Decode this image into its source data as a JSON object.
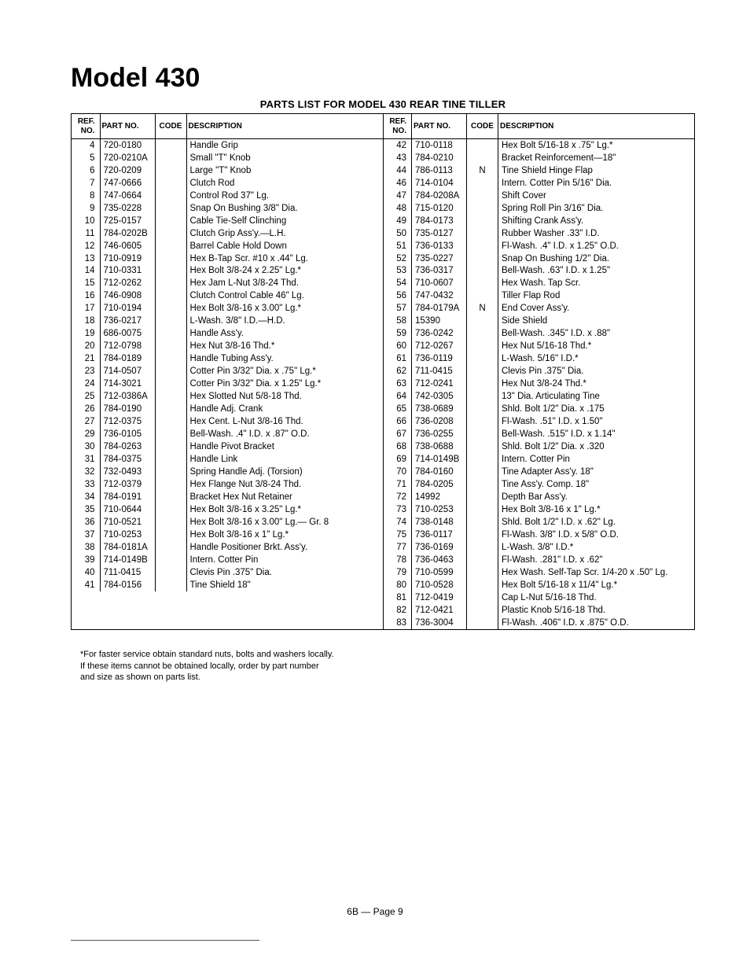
{
  "title": "Model 430",
  "subtitle": "PARTS LIST FOR MODEL 430 REAR TINE TILLER",
  "headers": {
    "ref": "REF.\nNO.",
    "part": "PART\nNO.",
    "code": "CODE",
    "desc": "DESCRIPTION"
  },
  "footnote": "*For faster service obtain standard nuts, bolts and washers locally.\nIf these items cannot be obtained locally, order by part number\nand size as shown on parts list.",
  "pagefoot": "6B — Page 9",
  "left": [
    {
      "r": "4",
      "p": "720-0180",
      "c": "",
      "d": "Handle Grip"
    },
    {
      "r": "5",
      "p": "720-0210A",
      "c": "",
      "d": "Small \"T\" Knob"
    },
    {
      "r": "6",
      "p": "720-0209",
      "c": "",
      "d": "Large \"T\" Knob"
    },
    {
      "r": "7",
      "p": "747-0666",
      "c": "",
      "d": "Clutch Rod"
    },
    {
      "r": "8",
      "p": "747-0664",
      "c": "",
      "d": "Control Rod 37\" Lg."
    },
    {
      "r": "9",
      "p": "735-0228",
      "c": "",
      "d": "Snap On Bushing 3/8\" Dia."
    },
    {
      "r": "10",
      "p": "725-0157",
      "c": "",
      "d": "Cable Tie-Self Clinching"
    },
    {
      "r": "11",
      "p": "784-0202B",
      "c": "",
      "d": "Clutch Grip Ass'y.—L.H."
    },
    {
      "r": "12",
      "p": "746-0605",
      "c": "",
      "d": "Barrel Cable Hold Down"
    },
    {
      "r": "13",
      "p": "710-0919",
      "c": "",
      "d": "Hex B-Tap Scr. #10 x .44\" Lg."
    },
    {
      "r": "14",
      "p": "710-0331",
      "c": "",
      "d": "Hex Bolt 3/8-24 x 2.25\" Lg.*"
    },
    {
      "r": "15",
      "p": "712-0262",
      "c": "",
      "d": "Hex Jam L-Nut 3/8-24 Thd."
    },
    {
      "r": "16",
      "p": "746-0908",
      "c": "",
      "d": "Clutch Control Cable 46\" Lg."
    },
    {
      "r": "17",
      "p": "710-0194",
      "c": "",
      "d": "Hex Bolt 3/8-16 x 3.00\" Lg.*"
    },
    {
      "r": "18",
      "p": "736-0217",
      "c": "",
      "d": "L-Wash. 3/8\" I.D.—H.D."
    },
    {
      "r": "19",
      "p": "686-0075",
      "c": "",
      "d": "Handle Ass'y."
    },
    {
      "r": "20",
      "p": "712-0798",
      "c": "",
      "d": "Hex Nut 3/8-16 Thd.*"
    },
    {
      "r": "21",
      "p": "784-0189",
      "c": "",
      "d": "Handle Tubing Ass'y."
    },
    {
      "r": "23",
      "p": "714-0507",
      "c": "",
      "d": "Cotter Pin 3/32\" Dia. x .75\" Lg.*"
    },
    {
      "r": "24",
      "p": "714-3021",
      "c": "",
      "d": "Cotter Pin 3/32\" Dia. x 1.25\" Lg.*"
    },
    {
      "r": "25",
      "p": "712-0386A",
      "c": "",
      "d": "Hex Slotted Nut 5/8-18 Thd."
    },
    {
      "r": "26",
      "p": "784-0190",
      "c": "",
      "d": "Handle Adj. Crank"
    },
    {
      "r": "27",
      "p": "712-0375",
      "c": "",
      "d": "Hex Cent. L-Nut 3/8-16 Thd."
    },
    {
      "r": "29",
      "p": "736-0105",
      "c": "",
      "d": "Bell-Wash. .4\" I.D. x .87\" O.D."
    },
    {
      "r": "30",
      "p": "784-0263",
      "c": "",
      "d": "Handle Pivot Bracket"
    },
    {
      "r": "31",
      "p": "784-0375",
      "c": "",
      "d": "Handle Link"
    },
    {
      "r": "32",
      "p": "732-0493",
      "c": "",
      "d": "Spring Handle Adj. (Torsion)"
    },
    {
      "r": "33",
      "p": "712-0379",
      "c": "",
      "d": "Hex Flange Nut 3/8-24 Thd."
    },
    {
      "r": "34",
      "p": "784-0191",
      "c": "",
      "d": "Bracket Hex Nut Retainer"
    },
    {
      "r": "35",
      "p": "710-0644",
      "c": "",
      "d": "Hex Bolt 3/8-16 x 3.25\" Lg.*"
    },
    {
      "r": "36",
      "p": "710-0521",
      "c": "",
      "d": "Hex Bolt 3/8-16 x 3.00\" Lg.— Gr. 8"
    },
    {
      "r": "37",
      "p": "710-0253",
      "c": "",
      "d": "Hex Bolt 3/8-16 x 1\" Lg.*"
    },
    {
      "r": "38",
      "p": "784-0181A",
      "c": "",
      "d": "Handle Positioner Brkt. Ass'y."
    },
    {
      "r": "39",
      "p": "714-0149B",
      "c": "",
      "d": "Intern. Cotter Pin"
    },
    {
      "r": "40",
      "p": "711-0415",
      "c": "",
      "d": "Clevis Pin .375\" Dia."
    },
    {
      "r": "41",
      "p": "784-0156",
      "c": "",
      "d": "Tine Shield 18\""
    }
  ],
  "right": [
    {
      "r": "42",
      "p": "710-0118",
      "c": "",
      "d": "Hex Bolt 5/16-18 x .75\" Lg.*"
    },
    {
      "r": "43",
      "p": "784-0210",
      "c": "",
      "d": "Bracket Reinforcement—18\""
    },
    {
      "r": "44",
      "p": "786-0113",
      "c": "N",
      "d": "Tine Shield Hinge Flap"
    },
    {
      "r": "46",
      "p": "714-0104",
      "c": "",
      "d": "Intern. Cotter Pin 5/16\" Dia."
    },
    {
      "r": "47",
      "p": "784-0208A",
      "c": "",
      "d": "Shift Cover"
    },
    {
      "r": "48",
      "p": "715-0120",
      "c": "",
      "d": "Spring Roll Pin 3/16\" Dia."
    },
    {
      "r": "49",
      "p": "784-0173",
      "c": "",
      "d": "Shifting Crank Ass'y."
    },
    {
      "r": "50",
      "p": "735-0127",
      "c": "",
      "d": "Rubber Washer .33\" I.D."
    },
    {
      "r": "51",
      "p": "736-0133",
      "c": "",
      "d": "Fl-Wash. .4\" I.D. x 1.25\" O.D."
    },
    {
      "r": "52",
      "p": "735-0227",
      "c": "",
      "d": "Snap On Bushing 1/2\" Dia."
    },
    {
      "r": "53",
      "p": "736-0317",
      "c": "",
      "d": "Bell-Wash. .63\" I.D. x 1.25\""
    },
    {
      "r": "54",
      "p": "710-0607",
      "c": "",
      "d": "Hex Wash. Tap Scr."
    },
    {
      "r": "56",
      "p": "747-0432",
      "c": "",
      "d": "Tiller Flap Rod"
    },
    {
      "r": "57",
      "p": "784-0179A",
      "c": "N",
      "d": "End Cover Ass'y."
    },
    {
      "r": "58",
      "p": "15390",
      "c": "",
      "d": "Side Shield"
    },
    {
      "r": "59",
      "p": "736-0242",
      "c": "",
      "d": "Bell-Wash. .345\" I.D. x .88\""
    },
    {
      "r": "60",
      "p": "712-0267",
      "c": "",
      "d": "Hex Nut 5/16-18 Thd.*"
    },
    {
      "r": "61",
      "p": "736-0119",
      "c": "",
      "d": "L-Wash. 5/16\" I.D.*"
    },
    {
      "r": "62",
      "p": "711-0415",
      "c": "",
      "d": "Clevis Pin .375\" Dia."
    },
    {
      "r": "63",
      "p": "712-0241",
      "c": "",
      "d": "Hex Nut 3/8-24 Thd.*"
    },
    {
      "r": "64",
      "p": "742-0305",
      "c": "",
      "d": "13\" Dia. Articulating Tine"
    },
    {
      "r": "65",
      "p": "738-0689",
      "c": "",
      "d": "Shld. Bolt 1/2\" Dia. x .175"
    },
    {
      "r": "66",
      "p": "736-0208",
      "c": "",
      "d": "Fl-Wash. .51\" I.D. x 1.50\""
    },
    {
      "r": "67",
      "p": "736-0255",
      "c": "",
      "d": "Bell-Wash. .515\" I.D. x 1.14\""
    },
    {
      "r": "68",
      "p": "738-0688",
      "c": "",
      "d": "Shld. Bolt 1/2\" Dia. x .320"
    },
    {
      "r": "69",
      "p": "714-0149B",
      "c": "",
      "d": "Intern. Cotter Pin"
    },
    {
      "r": "70",
      "p": "784-0160",
      "c": "",
      "d": "Tine Adapter Ass'y. 18\""
    },
    {
      "r": "71",
      "p": "784-0205",
      "c": "",
      "d": "Tine Ass'y. Comp. 18\""
    },
    {
      "r": "72",
      "p": "14992",
      "c": "",
      "d": "Depth Bar Ass'y."
    },
    {
      "r": "73",
      "p": "710-0253",
      "c": "",
      "d": "Hex Bolt 3/8-16 x 1\" Lg.*"
    },
    {
      "r": "74",
      "p": "738-0148",
      "c": "",
      "d": "Shld. Bolt 1/2\" I.D. x .62\" Lg."
    },
    {
      "r": "75",
      "p": "736-0117",
      "c": "",
      "d": "Fl-Wash. 3/8\" I.D. x 5/8\" O.D."
    },
    {
      "r": "77",
      "p": "736-0169",
      "c": "",
      "d": "L-Wash. 3/8\" I.D.*"
    },
    {
      "r": "78",
      "p": "736-0463",
      "c": "",
      "d": "Fl-Wash. .281\" I.D. x .62\""
    },
    {
      "r": "79",
      "p": "710-0599",
      "c": "",
      "d": "Hex Wash. Self-Tap Scr. 1/4-20 x .50\" Lg."
    },
    {
      "r": "80",
      "p": "710-0528",
      "c": "",
      "d": "Hex Bolt 5/16-18 x 11/4\" Lg.*"
    },
    {
      "r": "81",
      "p": "712-0419",
      "c": "",
      "d": "Cap L-Nut 5/16-18 Thd."
    },
    {
      "r": "82",
      "p": "712-0421",
      "c": "",
      "d": "Plastic Knob 5/16-18 Thd."
    },
    {
      "r": "83",
      "p": "736-3004",
      "c": "",
      "d": "Fl-Wash. .406\" I.D. x .875\" O.D."
    }
  ]
}
